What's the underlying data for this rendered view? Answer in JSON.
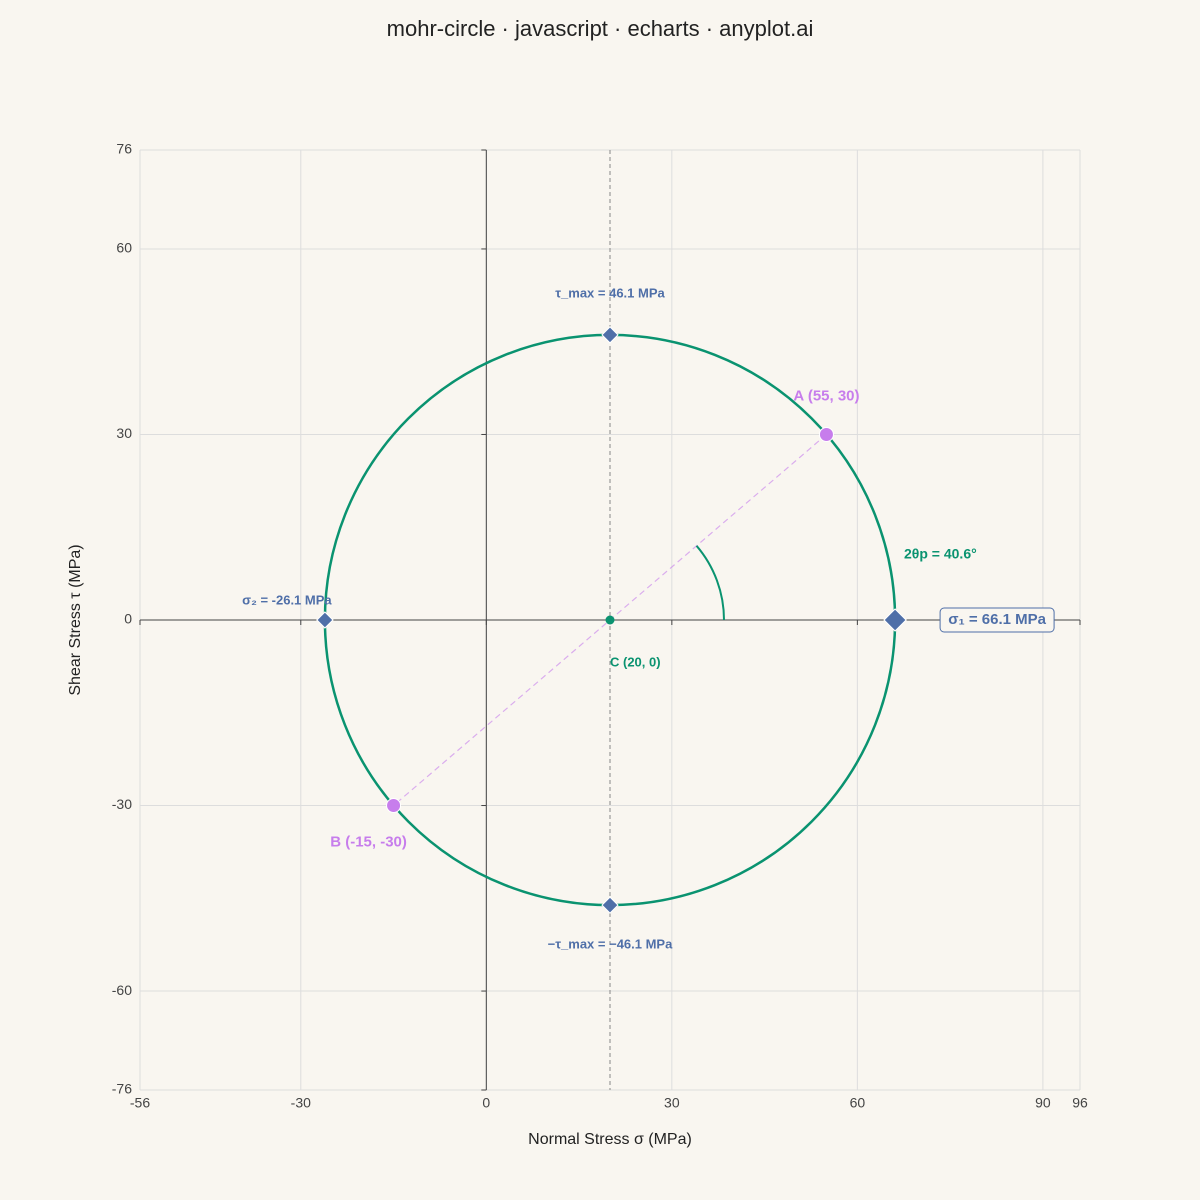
{
  "chart_data": {
    "type": "mohr",
    "title": "mohr-circle · javascript · echarts · anyplot.ai",
    "x_label": "Normal Stress σ (MPa)",
    "y_label": "Shear Stress τ (MPa)",
    "xlim": [
      -56,
      96
    ],
    "ylim": [
      -76,
      76
    ],
    "xticks": [
      -56,
      -30,
      0,
      30,
      60,
      90,
      96
    ],
    "yticks": [
      -76,
      -60,
      -30,
      0,
      30,
      60,
      76
    ],
    "grid": true,
    "circle": {
      "radius": 46.1,
      "color": "#0a9370"
    },
    "center": {
      "label": "C (20, 0)",
      "x": 20,
      "y": 0,
      "color": "#0a9370"
    },
    "stress_points": {
      "color": "#c77dec",
      "points": [
        {
          "label": "A (55, 30)",
          "x": 55,
          "y": 30
        },
        {
          "label": "B (-15, -30)",
          "x": -15,
          "y": -30
        }
      ]
    },
    "principal": {
      "color": "#4f6fa8",
      "points": [
        {
          "label": "σ₁ = 66.1 MPa",
          "x": 66.1,
          "y": 0
        },
        {
          "label": "σ₂ = -26.1 MPa",
          "x": -26.1,
          "y": 0
        }
      ]
    },
    "shear_max": {
      "color": "#4f6fa8",
      "points": [
        {
          "label": "τ_max = 46.1 MPa",
          "x": 20,
          "y": 46.1
        },
        {
          "label": "−τ_max = −46.1 MPa",
          "x": 20,
          "y": -46.1
        }
      ]
    },
    "angle": {
      "label": "2θp = 40.6°",
      "value": 40.6
    }
  }
}
